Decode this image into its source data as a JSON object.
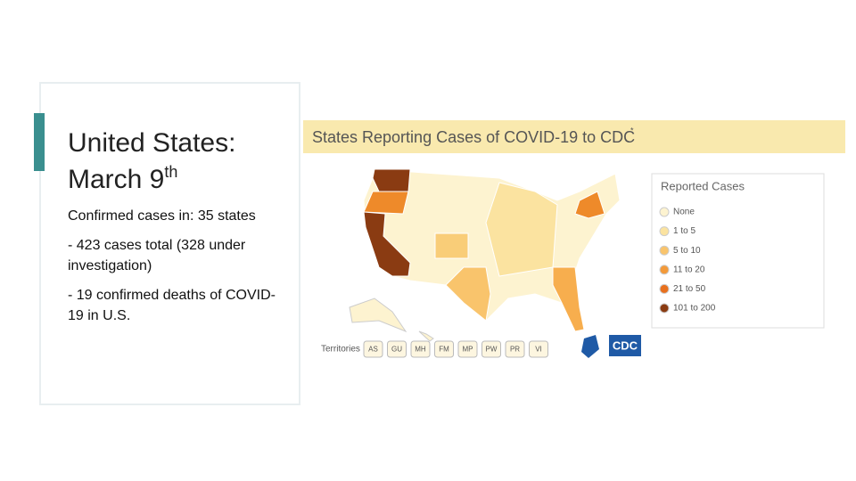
{
  "slide": {
    "title": {
      "line1": "United States:",
      "line2": "March 9",
      "superscript": "th"
    },
    "bullets": [
      "Confirmed cases in: 35 states",
      "- 423 cases total (328 under investigation)",
      "- 19 confirmed deaths of COVID-19 in U.S."
    ]
  },
  "map": {
    "title": "States Reporting Cases of COVID-19 to CDC",
    "title_mark": "*",
    "legend": {
      "title": "Reported Cases",
      "items": [
        "None",
        "1 to 5",
        "5 to 10",
        "11 to 20",
        "21 to 50",
        "101 to 200"
      ]
    },
    "territories_label": "Territories",
    "territories": [
      "AS",
      "GU",
      "MH",
      "FM",
      "MP",
      "PW",
      "PR",
      "VI"
    ],
    "logo": "CDC"
  }
}
